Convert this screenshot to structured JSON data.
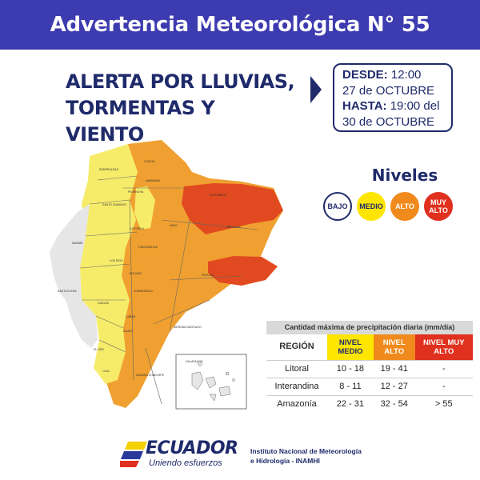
{
  "header": {
    "title": "Advertencia Meteorológica N° 55"
  },
  "alert": {
    "line1": "ALERTA POR LLUVIAS,",
    "line2": "TORMENTAS Y VIENTO"
  },
  "period": {
    "from_label": "DESDE:",
    "from_time": "12:00",
    "from_date": "27 de OCTUBRE",
    "to_label": "HASTA:",
    "to_time": "19:00 del",
    "to_date": "30 de OCTUBRE"
  },
  "levels": {
    "title": "Niveles",
    "items": [
      {
        "label": "BAJO",
        "color": "#ffffff",
        "text_color": "#1f2a6b"
      },
      {
        "label": "MEDIO",
        "color": "#ffe600",
        "text_color": "#1f2a6b"
      },
      {
        "label": "ALTO",
        "color": "#f08a1c",
        "text_color": "#ffffff"
      },
      {
        "label": "MUY ALTO",
        "color": "#e0301e",
        "text_color": "#ffffff"
      }
    ]
  },
  "map": {
    "colors": {
      "bajo": "#e6e6e6",
      "medio": "#f6ec6a",
      "alto": "#f0a030",
      "alto_dark": "#ec8a22",
      "muy_alto": "#e14a20"
    },
    "province_labels": [
      "ESMERALDAS",
      "CARCHI",
      "IMBABURA",
      "SUCUMBIOS",
      "PICHINCHA",
      "SANTO DOMINGO",
      "NAPO",
      "ORELLANA",
      "MANABI",
      "COTOPAXI",
      "TUNGURAHUA",
      "PASTAZA",
      "LOS RIOS",
      "BOLIVAR",
      "CHIMBORAZO",
      "SANTA ELENA",
      "GUAYAS",
      "CAÑAR",
      "AZUAY",
      "MORONA SANTIAGO",
      "EL ORO",
      "LOJA",
      "ZAMORA CHINCHIPE",
      "GALÁPAGOS"
    ]
  },
  "table": {
    "caption": "Cantidad máxima de precipitación diaria (mm/día)",
    "headers": {
      "region": "REGIÓN",
      "medio": "NIVEL MEDIO",
      "alto": "NIVEL ALTO",
      "muy_alto": "NIVEL MUY ALTO"
    },
    "rows": [
      {
        "region": "Litoral",
        "medio": "10 - 18",
        "alto": "19 - 41",
        "muy_alto": "-"
      },
      {
        "region": "Interandina",
        "medio": "8 - 11",
        "alto": "12 - 27",
        "muy_alto": "-"
      },
      {
        "region": "Amazonía",
        "medio": "22 - 31",
        "alto": "32 - 54",
        "muy_alto": "> 55"
      }
    ]
  },
  "footer": {
    "brand": "ECUADOR",
    "slogan": "Uniendo esfuerzos",
    "institute_line1": "Instituto Nacional de Meteorología",
    "institute_line2": "e Hidrología - INAMHI"
  }
}
